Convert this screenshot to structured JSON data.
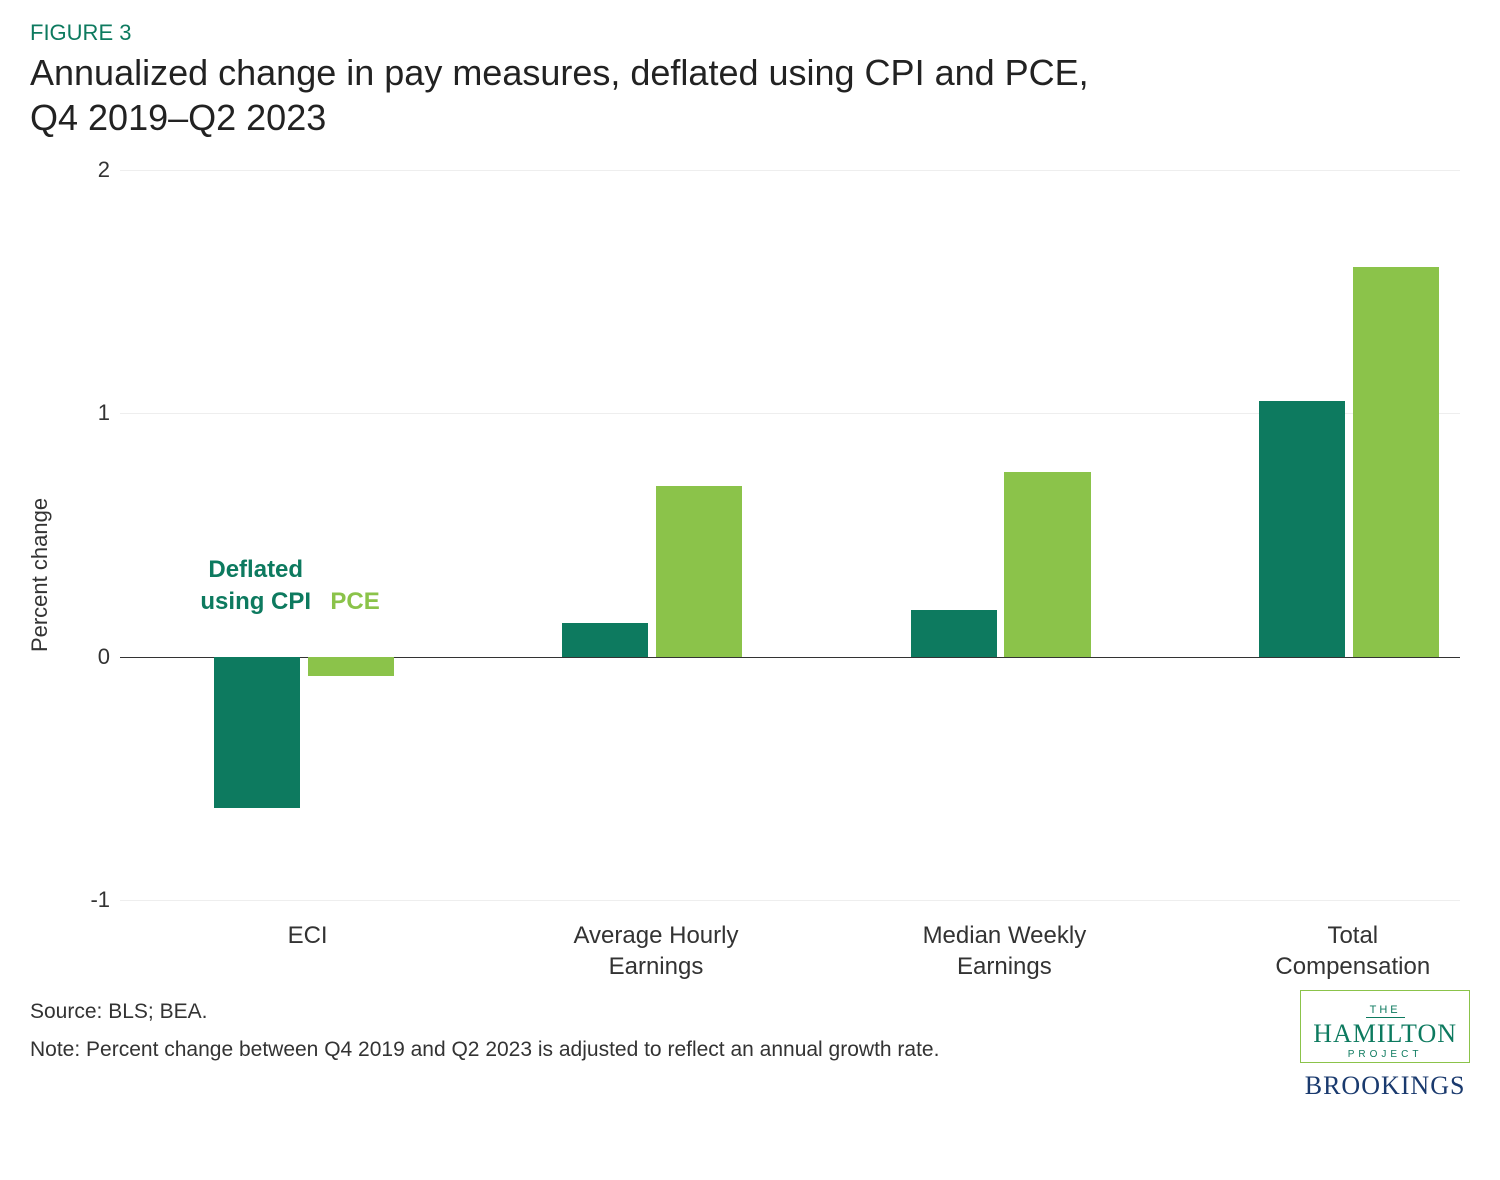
{
  "figure_label": "FIGURE 3",
  "title_line1": "Annualized change in pay measures, deflated using CPI and PCE,",
  "title_line2": "Q4 2019–Q2 2023",
  "chart": {
    "type": "bar",
    "y_axis_label": "Percent change",
    "ylim": [
      -1,
      2
    ],
    "yticks": [
      -1,
      0,
      1,
      2
    ],
    "ytick_labels": [
      "-1",
      "0",
      "1",
      "2"
    ],
    "grid_color": "#eeeeee",
    "zero_line_color": "#333333",
    "background_color": "#ffffff",
    "categories": [
      "ECI",
      "Average Hourly\nEarnings",
      "Median Weekly\nEarnings",
      "Total\nCompensation"
    ],
    "series": [
      {
        "name": "Deflated using CPI",
        "color": "#0d7a5f",
        "values": [
          -0.62,
          0.14,
          0.19,
          1.05
        ]
      },
      {
        "name": "PCE",
        "color": "#8bc34a",
        "values": [
          -0.08,
          0.7,
          0.76,
          1.6
        ]
      }
    ],
    "group_width_pct": 14,
    "group_positions_pct": [
      7,
      33,
      59,
      85
    ],
    "bar_width_ratio": 0.46,
    "legend": {
      "cpi_label_line1": "Deflated",
      "cpi_label_line2": "using CPI",
      "pce_label": "PCE",
      "cpi_color": "#0d7a5f",
      "pce_color": "#8bc34a"
    }
  },
  "source_text": "Source: BLS; BEA.",
  "note_text": "Note: Percent change between Q4 2019 and Q2 2023 is adjusted to reflect an annual growth rate.",
  "logos": {
    "hamilton_the": "THE",
    "hamilton_name": "HAMILTON",
    "hamilton_project": "PROJECT",
    "brookings": "BROOKINGS"
  }
}
